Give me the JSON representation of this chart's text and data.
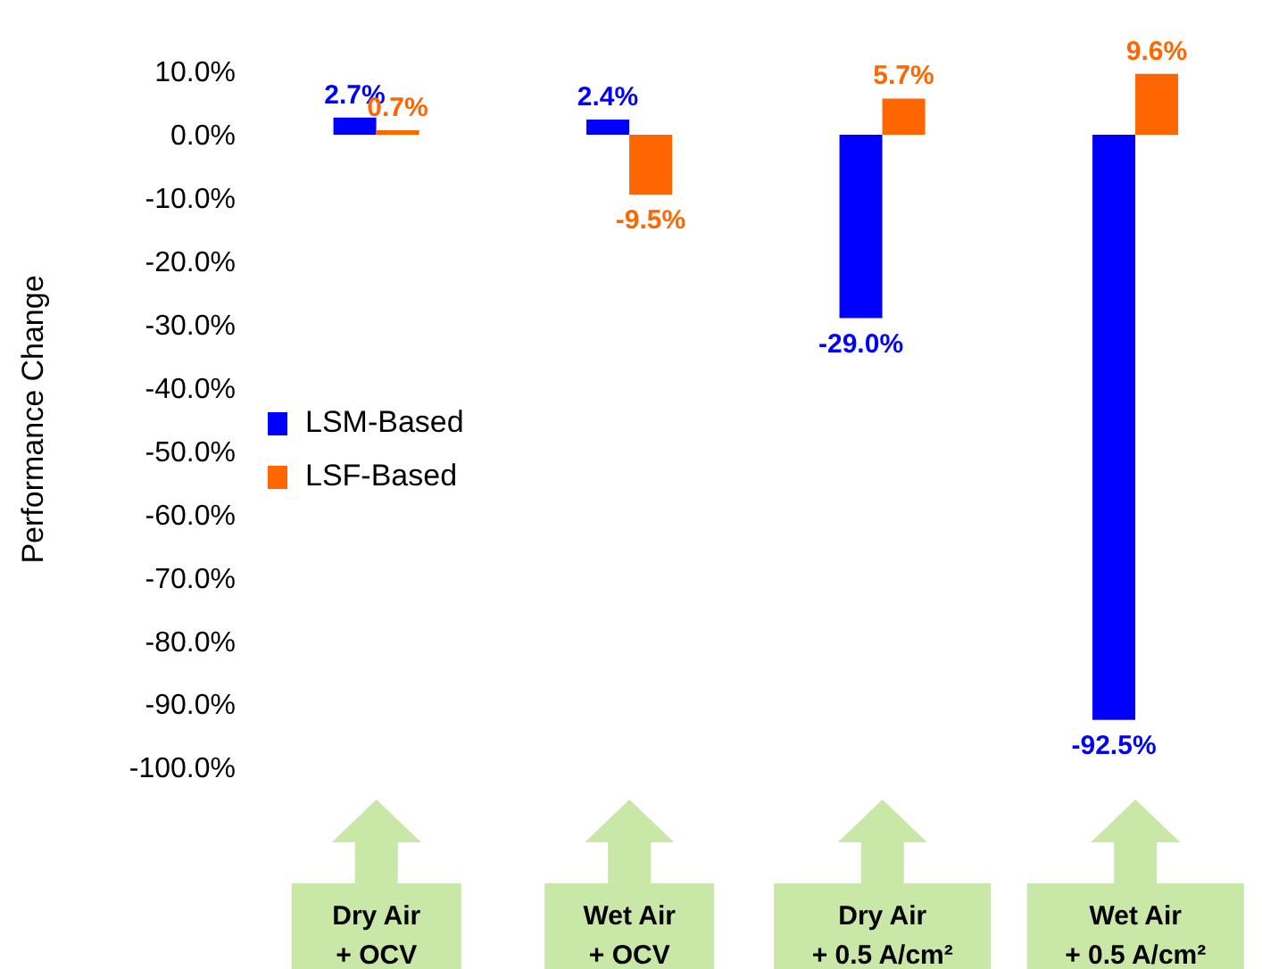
{
  "chart_data": {
    "type": "bar",
    "ylabel": "Performance Change",
    "categories": [
      "Dry Air + OCV",
      "Wet Air + OCV",
      "Dry Air + 0.5 A/cm²",
      "Wet Air + 0.5 A/cm²"
    ],
    "series": [
      {
        "name": "LSM-Based",
        "color": "#0000ff",
        "values": [
          2.7,
          2.4,
          -29.0,
          -92.5
        ],
        "value_labels": [
          "2.7%",
          "2.4%",
          "-29.0%",
          "-92.5%"
        ]
      },
      {
        "name": "LSF-Based",
        "color": "#ff6600",
        "values": [
          0.7,
          -9.5,
          5.7,
          9.6
        ],
        "value_labels": [
          "0.7%",
          "-9.5%",
          "5.7%",
          "9.6%"
        ]
      }
    ],
    "ylim": [
      -100,
      10
    ],
    "yticks": [
      {
        "value": 10,
        "label": "10.0%"
      },
      {
        "value": 0,
        "label": "0.0%"
      },
      {
        "value": -10,
        "label": "-10.0%"
      },
      {
        "value": -20,
        "label": "-20.0%"
      },
      {
        "value": -30,
        "label": "-30.0%"
      },
      {
        "value": -40,
        "label": "-40.0%"
      },
      {
        "value": -50,
        "label": "-50.0%"
      },
      {
        "value": -60,
        "label": "-60.0%"
      },
      {
        "value": -70,
        "label": "-70.0%"
      },
      {
        "value": -80,
        "label": "-80.0%"
      },
      {
        "value": -90,
        "label": "-90.0%"
      },
      {
        "value": -100,
        "label": "-100.0%"
      }
    ],
    "grid": false,
    "legend": "left"
  }
}
